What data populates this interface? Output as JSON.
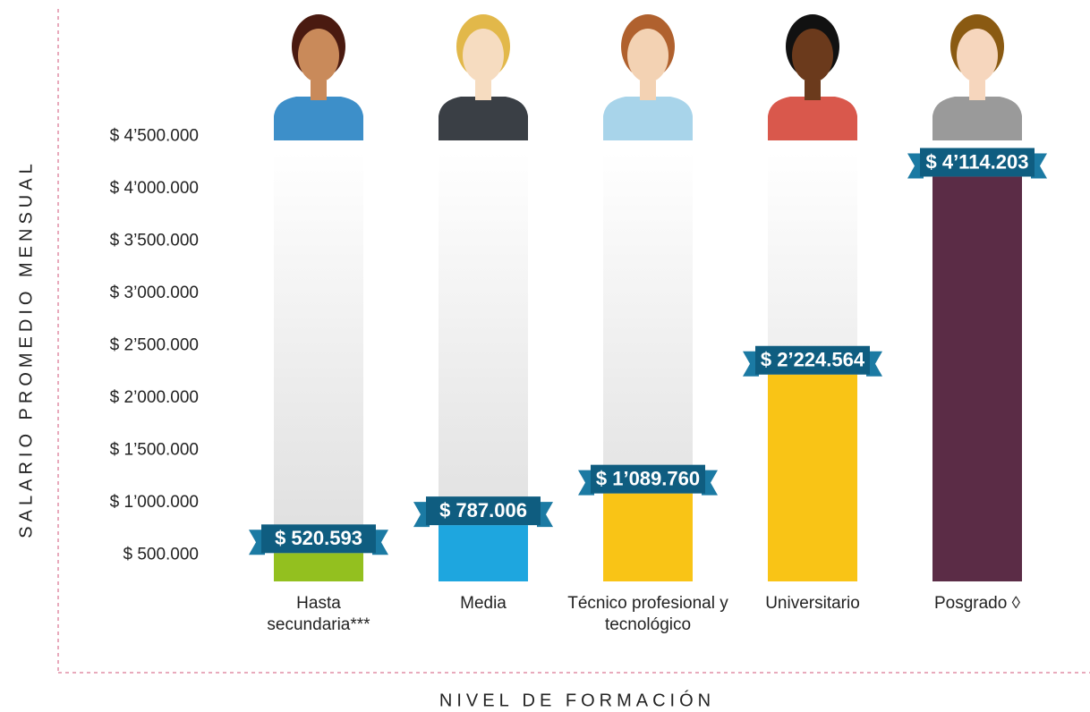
{
  "chart_data": {
    "type": "bar",
    "x_label": "NIVEL DE FORMACIÓN",
    "y_label": "SALARIO PROMEDIO MENSUAL",
    "categories": [
      "Hasta secundaria***",
      "Media",
      "Técnico profesional y tecnológico",
      "Universitario",
      "Posgrado ◊"
    ],
    "values": [
      520593,
      787006,
      1089760,
      2224564,
      4114203
    ],
    "value_labels": [
      "$ 520.593",
      "$ 787.006",
      "$ 1’089.760",
      "$ 2’224.564",
      "$ 4’114.203"
    ],
    "colors": [
      "#93c01f",
      "#1ea6df",
      "#f9c416",
      "#f9c416",
      "#5b2c46"
    ],
    "ylim": [
      250000,
      4750000
    ],
    "yticks": [
      {
        "value": 500000,
        "label": "$ 500.000"
      },
      {
        "value": 1000000,
        "label": "$ 1’000.000"
      },
      {
        "value": 1500000,
        "label": "$ 1’500.000"
      },
      {
        "value": 2000000,
        "label": "$ 2’000.000"
      },
      {
        "value": 2500000,
        "label": "$ 2’500.000"
      },
      {
        "value": 3000000,
        "label": "$ 3’000.000"
      },
      {
        "value": 3500000,
        "label": "$ 3’500.000"
      },
      {
        "value": 4000000,
        "label": "$ 4’000.000"
      },
      {
        "value": 4500000,
        "label": "$ 4’500.000"
      }
    ],
    "grid": false
  }
}
